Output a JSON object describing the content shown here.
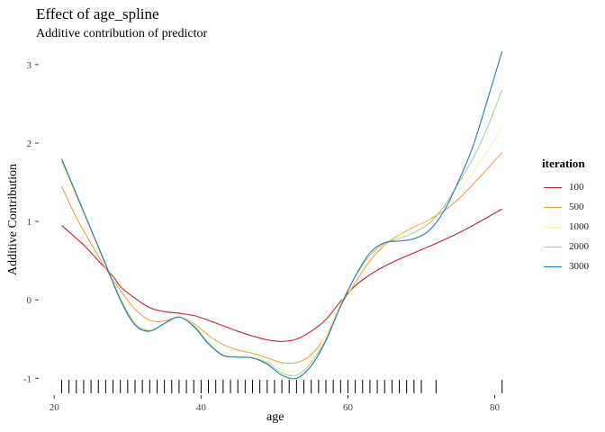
{
  "chart_data": {
    "type": "line",
    "title": "Effect of age_spline",
    "subtitle": "Additive contribution of predictor",
    "xlabel": "age",
    "ylabel": "Additive Contribution",
    "xlim": [
      18,
      83
    ],
    "ylim": [
      -1.18,
      3.32
    ],
    "x_ticks": [
      20,
      40,
      60,
      80
    ],
    "y_ticks": [
      -1,
      0,
      1,
      2,
      3
    ],
    "x_tick_labels": [
      "20",
      "40",
      "60",
      "80"
    ],
    "y_tick_labels": [
      "-1",
      "0",
      "1",
      "2",
      "3"
    ],
    "grid": false,
    "legend_title": "iteration",
    "legend_position": "right",
    "rug_x": [
      21,
      22,
      23,
      24,
      25,
      26,
      27,
      28,
      29,
      30,
      31,
      32,
      33,
      34,
      35,
      36,
      37,
      38,
      39,
      40,
      41,
      42,
      43,
      44,
      45,
      46,
      47,
      48,
      49,
      50,
      51,
      52,
      53,
      54,
      55,
      56,
      57,
      58,
      59,
      60,
      61,
      62,
      63,
      64,
      65,
      66,
      67,
      68,
      69,
      70,
      72,
      81
    ],
    "series": [
      {
        "name": "100",
        "color": "#c8202a",
        "points": [
          [
            21,
            0.95
          ],
          [
            24,
            0.7
          ],
          [
            26,
            0.5
          ],
          [
            28,
            0.3
          ],
          [
            29,
            0.17
          ],
          [
            31,
            0.02
          ],
          [
            33,
            -0.1
          ],
          [
            35,
            -0.15
          ],
          [
            37,
            -0.17
          ],
          [
            39,
            -0.2
          ],
          [
            41,
            -0.26
          ],
          [
            43,
            -0.33
          ],
          [
            45,
            -0.4
          ],
          [
            47,
            -0.46
          ],
          [
            49,
            -0.51
          ],
          [
            51,
            -0.53
          ],
          [
            53,
            -0.5
          ],
          [
            55,
            -0.4
          ],
          [
            57,
            -0.25
          ],
          [
            59,
            -0.02
          ],
          [
            61,
            0.18
          ],
          [
            63,
            0.32
          ],
          [
            65,
            0.43
          ],
          [
            67,
            0.52
          ],
          [
            69,
            0.6
          ],
          [
            72,
            0.72
          ],
          [
            75,
            0.85
          ],
          [
            78,
            1.0
          ],
          [
            81,
            1.16
          ]
        ]
      },
      {
        "name": "500",
        "color": "#f0a24a",
        "points": [
          [
            21,
            1.45
          ],
          [
            23,
            1.05
          ],
          [
            25,
            0.72
          ],
          [
            27,
            0.4
          ],
          [
            29,
            0.12
          ],
          [
            31,
            -0.12
          ],
          [
            33,
            -0.26
          ],
          [
            35,
            -0.27
          ],
          [
            37,
            -0.22
          ],
          [
            39,
            -0.3
          ],
          [
            41,
            -0.45
          ],
          [
            43,
            -0.57
          ],
          [
            45,
            -0.64
          ],
          [
            47,
            -0.68
          ],
          [
            49,
            -0.74
          ],
          [
            51,
            -0.8
          ],
          [
            53,
            -0.8
          ],
          [
            55,
            -0.7
          ],
          [
            57,
            -0.45
          ],
          [
            59,
            -0.08
          ],
          [
            61,
            0.22
          ],
          [
            63,
            0.5
          ],
          [
            65,
            0.7
          ],
          [
            67,
            0.83
          ],
          [
            69,
            0.93
          ],
          [
            71,
            1.02
          ],
          [
            73,
            1.13
          ],
          [
            75,
            1.28
          ],
          [
            78,
            1.57
          ],
          [
            81,
            1.88
          ]
        ]
      },
      {
        "name": "1000",
        "color": "#fdf3a8",
        "points": [
          [
            21,
            1.75
          ],
          [
            23,
            1.3
          ],
          [
            25,
            0.88
          ],
          [
            27,
            0.45
          ],
          [
            29,
            0.05
          ],
          [
            31,
            -0.28
          ],
          [
            33,
            -0.38
          ],
          [
            35,
            -0.3
          ],
          [
            37,
            -0.22
          ],
          [
            39,
            -0.32
          ],
          [
            41,
            -0.52
          ],
          [
            43,
            -0.66
          ],
          [
            45,
            -0.71
          ],
          [
            47,
            -0.72
          ],
          [
            49,
            -0.78
          ],
          [
            51,
            -0.89
          ],
          [
            53,
            -0.9
          ],
          [
            55,
            -0.75
          ],
          [
            57,
            -0.45
          ],
          [
            59,
            -0.05
          ],
          [
            61,
            0.3
          ],
          [
            63,
            0.55
          ],
          [
            65,
            0.72
          ],
          [
            67,
            0.84
          ],
          [
            69,
            0.94
          ],
          [
            71,
            1.03
          ],
          [
            73,
            1.17
          ],
          [
            75,
            1.37
          ],
          [
            77,
            1.62
          ],
          [
            79,
            1.9
          ],
          [
            81,
            2.2
          ]
        ]
      },
      {
        "name": "2000",
        "color": "#a8d3a0",
        "points": [
          [
            21,
            1.78
          ],
          [
            23,
            1.34
          ],
          [
            25,
            0.9
          ],
          [
            27,
            0.46
          ],
          [
            29,
            0.02
          ],
          [
            31,
            -0.3
          ],
          [
            33,
            -0.39
          ],
          [
            35,
            -0.3
          ],
          [
            37,
            -0.22
          ],
          [
            39,
            -0.33
          ],
          [
            41,
            -0.55
          ],
          [
            43,
            -0.7
          ],
          [
            45,
            -0.73
          ],
          [
            47,
            -0.74
          ],
          [
            49,
            -0.8
          ],
          [
            51,
            -0.93
          ],
          [
            53,
            -0.96
          ],
          [
            55,
            -0.8
          ],
          [
            57,
            -0.5
          ],
          [
            59,
            -0.07
          ],
          [
            61,
            0.3
          ],
          [
            63,
            0.57
          ],
          [
            65,
            0.72
          ],
          [
            67,
            0.78
          ],
          [
            69,
            0.86
          ],
          [
            71,
            0.97
          ],
          [
            73,
            1.18
          ],
          [
            75,
            1.48
          ],
          [
            77,
            1.8
          ],
          [
            79,
            2.2
          ],
          [
            81,
            2.68
          ]
        ]
      },
      {
        "name": "3000",
        "color": "#2878b4",
        "points": [
          [
            21,
            1.8
          ],
          [
            23,
            1.35
          ],
          [
            25,
            0.9
          ],
          [
            27,
            0.45
          ],
          [
            29,
            0.0
          ],
          [
            31,
            -0.32
          ],
          [
            33,
            -0.4
          ],
          [
            35,
            -0.3
          ],
          [
            37,
            -0.22
          ],
          [
            39,
            -0.34
          ],
          [
            41,
            -0.56
          ],
          [
            43,
            -0.71
          ],
          [
            45,
            -0.73
          ],
          [
            47,
            -0.74
          ],
          [
            49,
            -0.82
          ],
          [
            51,
            -0.96
          ],
          [
            53,
            -1.0
          ],
          [
            55,
            -0.84
          ],
          [
            57,
            -0.52
          ],
          [
            59,
            -0.08
          ],
          [
            61,
            0.3
          ],
          [
            63,
            0.6
          ],
          [
            65,
            0.73
          ],
          [
            67,
            0.75
          ],
          [
            69,
            0.78
          ],
          [
            71,
            0.88
          ],
          [
            73,
            1.12
          ],
          [
            75,
            1.5
          ],
          [
            77,
            1.95
          ],
          [
            79,
            2.55
          ],
          [
            81,
            3.17
          ]
        ]
      }
    ]
  }
}
